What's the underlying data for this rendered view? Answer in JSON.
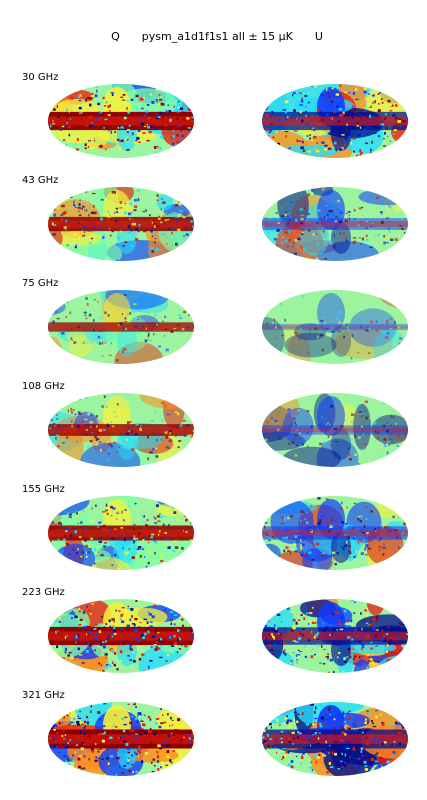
{
  "title": {
    "left": "Q",
    "center": "pysm_a1d1f1s1 all ± 15 μK",
    "right": "U"
  },
  "colormap": "jet",
  "colors": {
    "dark_blue": "#000c8f",
    "blue": "#0c3cff",
    "cyan": "#22ddff",
    "light_green": "#7dffa6",
    "green_bg": "#9cf59e",
    "yellow": "#f8f03a",
    "orange": "#ff8a1d",
    "red": "#ea1b10",
    "dark_red": "#8e0000"
  },
  "stokes_columns": [
    "Q",
    "U"
  ],
  "frequencies": [
    {
      "label": "30 GHz",
      "q_intensity": 0.95,
      "u_intensity": 0.95
    },
    {
      "label": "43 GHz",
      "q_intensity": 0.7,
      "u_intensity": 0.55
    },
    {
      "label": "75 GHz",
      "q_intensity": 0.4,
      "u_intensity": 0.2
    },
    {
      "label": "108 GHz",
      "q_intensity": 0.55,
      "u_intensity": 0.4
    },
    {
      "label": "155 GHz",
      "q_intensity": 0.75,
      "u_intensity": 0.65
    },
    {
      "label": "223 GHz",
      "q_intensity": 0.95,
      "u_intensity": 0.9
    },
    {
      "label": "321 GHz",
      "q_intensity": 1.0,
      "u_intensity": 1.0
    }
  ]
}
